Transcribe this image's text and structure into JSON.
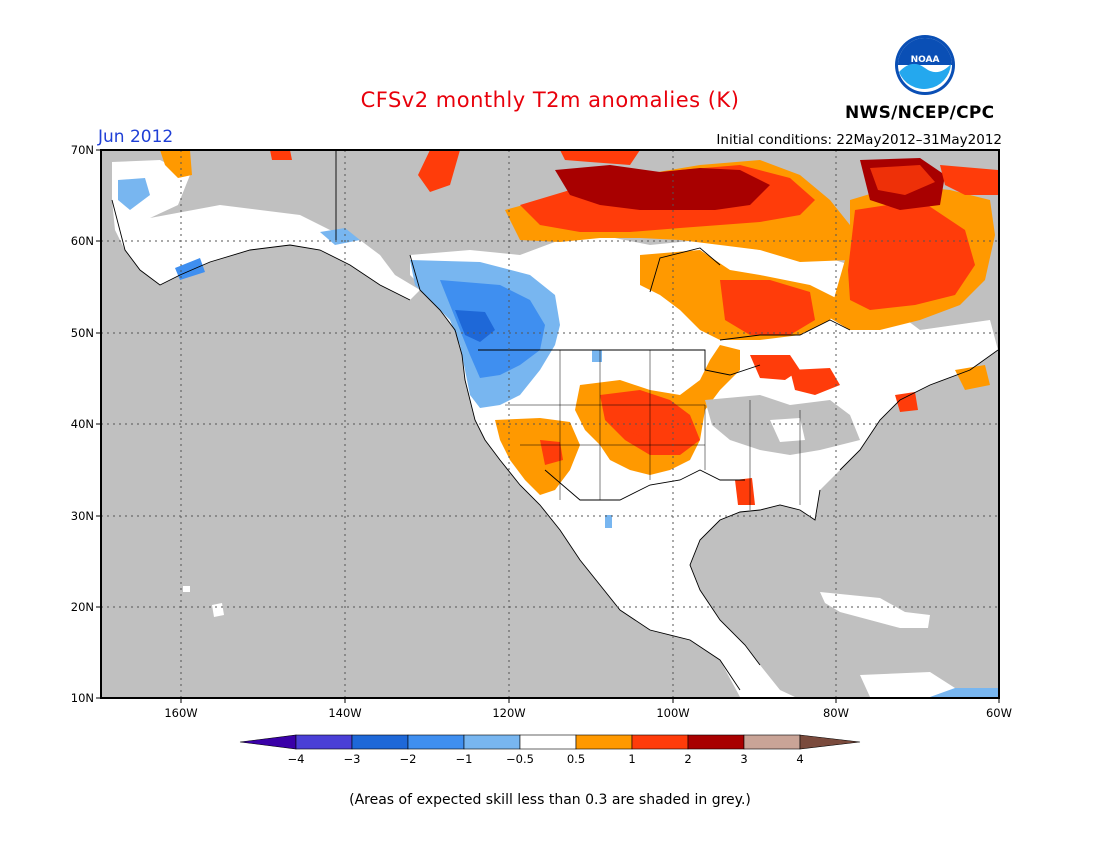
{
  "map": {
    "title": "CFSv2 monthly T2m anomalies (K)",
    "month": "Jun 2012",
    "initial_conditions": "Initial conditions: 22May2012–31May2012",
    "agency": "NWS/NCEP/CPC",
    "logo_text": "NOAA",
    "note": "(Areas of expected skill less than 0.3 are shaded in grey.)",
    "lat_labels": [
      "70N",
      "60N",
      "50N",
      "40N",
      "30N",
      "20N",
      "10N"
    ],
    "lon_labels": [
      "160W",
      "140W",
      "120W",
      "100W",
      "80W",
      "60W"
    ],
    "region": "North America",
    "colors": {
      "grey_low_skill": "#c0c0c0",
      "land_neutral": "#ffffff",
      "graticule": "#555555"
    }
  },
  "legend": {
    "labels": [
      "−4",
      "−3",
      "−2",
      "−1",
      "−0.5",
      "0.5",
      "1",
      "2",
      "3",
      "4"
    ],
    "colors": [
      "#3a00a8",
      "#4a3fd6",
      "#1e68d8",
      "#3f8ff0",
      "#78b6f0",
      "#ffffff",
      "#ff9900",
      "#ff3c0a",
      "#a80000",
      "#c9a497",
      "#7a4a3c"
    ]
  }
}
